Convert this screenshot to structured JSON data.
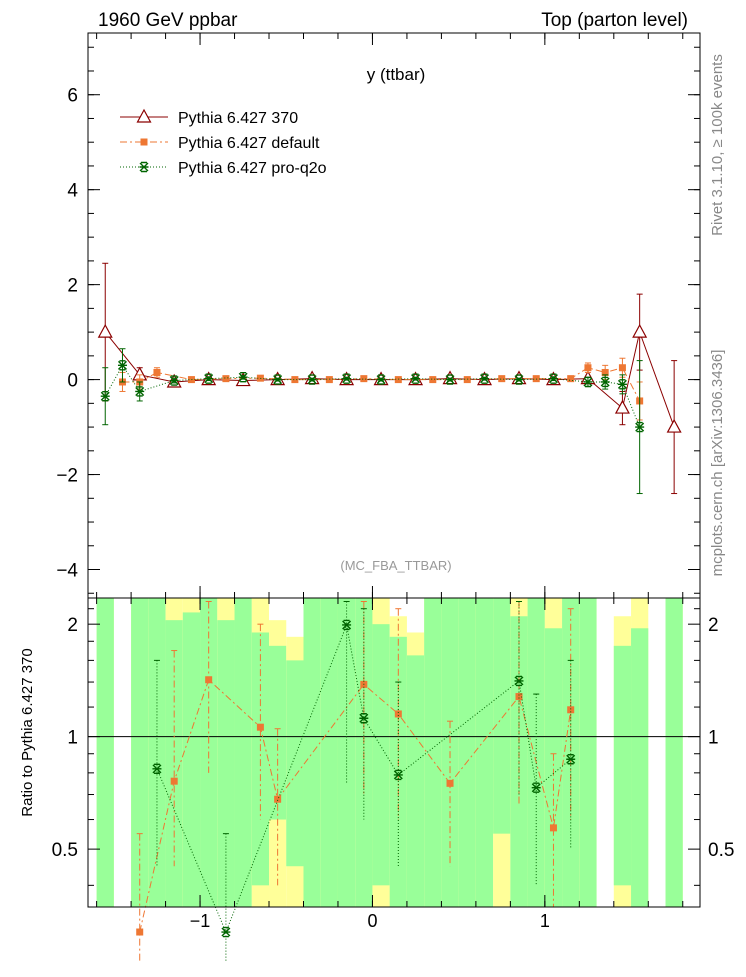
{
  "header": {
    "left": "1960 GeV ppbar",
    "right": "Top (parton level)"
  },
  "side_text": {
    "rivet": "Rivet 3.1.10, ≥ 100k events",
    "mcplots": "mcplots.cern.ch [arXiv:1306.3436]"
  },
  "colors": {
    "pythia_370": "#8b0000",
    "pythia_default": "#ee7733",
    "pythia_pro_q2o": "#006400",
    "band_green": "#99ff99",
    "band_yellow": "#ffff99"
  },
  "chart_data": [
    {
      "type": "line",
      "title": "y (ttbar)",
      "watermark": "(MC_FBA_TTBAR)",
      "xlabel": "",
      "ylabel": "",
      "xlim": [
        -1.65,
        1.9
      ],
      "ylim": [
        -4.6,
        7.3
      ],
      "x_ticks": [
        -1,
        0,
        1
      ],
      "x_tick_labels": [
        "−1",
        "0",
        "1"
      ],
      "y_ticks": [
        -4,
        -2,
        0,
        2,
        4,
        6
      ],
      "y_tick_labels": [
        "−4",
        "−2",
        "0",
        "2",
        "4",
        "6"
      ],
      "legend_position": "top-left",
      "series": [
        {
          "name": "Pythia 6.427 370",
          "marker": "open-triangle",
          "line": "solid",
          "points": [
            {
              "x": -1.55,
              "y": 1.0,
              "err": 1.45
            },
            {
              "x": -1.35,
              "y": 0.1,
              "err": 0.15
            },
            {
              "x": -1.15,
              "y": -0.05,
              "err": 0.05
            },
            {
              "x": -0.95,
              "y": 0.0,
              "err": 0.03
            },
            {
              "x": -0.75,
              "y": -0.02,
              "err": 0.03
            },
            {
              "x": -0.55,
              "y": 0.0,
              "err": 0.03
            },
            {
              "x": -0.35,
              "y": 0.02,
              "err": 0.03
            },
            {
              "x": -0.15,
              "y": 0.0,
              "err": 0.03
            },
            {
              "x": 0.05,
              "y": 0.0,
              "err": 0.03
            },
            {
              "x": 0.25,
              "y": 0.0,
              "err": 0.03
            },
            {
              "x": 0.45,
              "y": 0.02,
              "err": 0.03
            },
            {
              "x": 0.65,
              "y": 0.0,
              "err": 0.03
            },
            {
              "x": 0.85,
              "y": 0.02,
              "err": 0.03
            },
            {
              "x": 1.05,
              "y": 0.0,
              "err": 0.03
            },
            {
              "x": 1.25,
              "y": 0.02,
              "err": 0.05
            },
            {
              "x": 1.45,
              "y": -0.6,
              "err": 0.35
            },
            {
              "x": 1.55,
              "y": 1.0,
              "err": 0.8
            },
            {
              "x": 1.75,
              "y": -1.0,
              "err": 1.4
            }
          ]
        },
        {
          "name": "Pythia 6.427 default",
          "marker": "filled-square",
          "line": "dashdot",
          "points": [
            {
              "x": -1.45,
              "y": -0.05,
              "err": 0.2
            },
            {
              "x": -1.35,
              "y": -0.05,
              "err": 0.15
            },
            {
              "x": -1.25,
              "y": 0.15,
              "err": 0.1
            },
            {
              "x": -1.05,
              "y": 0.0,
              "err": 0.05
            },
            {
              "x": -0.85,
              "y": 0.02,
              "err": 0.04
            },
            {
              "x": -0.65,
              "y": 0.03,
              "err": 0.04
            },
            {
              "x": -0.45,
              "y": 0.0,
              "err": 0.04
            },
            {
              "x": -0.25,
              "y": 0.0,
              "err": 0.03
            },
            {
              "x": -0.05,
              "y": 0.02,
              "err": 0.03
            },
            {
              "x": 0.15,
              "y": 0.0,
              "err": 0.03
            },
            {
              "x": 0.35,
              "y": 0.0,
              "err": 0.03
            },
            {
              "x": 0.55,
              "y": 0.0,
              "err": 0.03
            },
            {
              "x": 0.75,
              "y": 0.02,
              "err": 0.03
            },
            {
              "x": 0.95,
              "y": 0.02,
              "err": 0.03
            },
            {
              "x": 1.15,
              "y": 0.02,
              "err": 0.04
            },
            {
              "x": 1.25,
              "y": 0.25,
              "err": 0.1
            },
            {
              "x": 1.35,
              "y": 0.15,
              "err": 0.15
            },
            {
              "x": 1.45,
              "y": 0.25,
              "err": 0.2
            },
            {
              "x": 1.55,
              "y": -0.45,
              "err": 0.4
            }
          ]
        },
        {
          "name": "Pythia 6.427 pro-q2o",
          "marker": "star",
          "line": "dotted",
          "points": [
            {
              "x": -1.55,
              "y": -0.35,
              "err": 0.6
            },
            {
              "x": -1.45,
              "y": 0.3,
              "err": 0.35
            },
            {
              "x": -1.35,
              "y": -0.25,
              "err": 0.2
            },
            {
              "x": -1.15,
              "y": -0.02,
              "err": 0.05
            },
            {
              "x": -0.95,
              "y": 0.02,
              "err": 0.04
            },
            {
              "x": -0.75,
              "y": 0.05,
              "err": 0.04
            },
            {
              "x": -0.55,
              "y": 0.0,
              "err": 0.03
            },
            {
              "x": -0.35,
              "y": 0.0,
              "err": 0.03
            },
            {
              "x": -0.15,
              "y": 0.02,
              "err": 0.03
            },
            {
              "x": 0.05,
              "y": 0.0,
              "err": 0.03
            },
            {
              "x": 0.25,
              "y": 0.02,
              "err": 0.03
            },
            {
              "x": 0.45,
              "y": 0.0,
              "err": 0.03
            },
            {
              "x": 0.65,
              "y": 0.02,
              "err": 0.03
            },
            {
              "x": 0.85,
              "y": 0.0,
              "err": 0.03
            },
            {
              "x": 1.05,
              "y": 0.02,
              "err": 0.04
            },
            {
              "x": 1.25,
              "y": -0.05,
              "err": 0.1
            },
            {
              "x": 1.35,
              "y": -0.05,
              "err": 0.15
            },
            {
              "x": 1.45,
              "y": -0.1,
              "err": 0.2
            },
            {
              "x": 1.55,
              "y": -1.0,
              "err": 1.4
            }
          ]
        }
      ]
    },
    {
      "type": "line",
      "title": "",
      "xlabel": "",
      "ylabel": "Ratio to Pythia 6.427 370",
      "xlim": [
        -1.65,
        1.9
      ],
      "ylim": [
        0.35,
        2.35
      ],
      "y_scale": "log",
      "x_ticks": [
        -1,
        0,
        1
      ],
      "x_tick_labels": [
        "−1",
        "0",
        "1"
      ],
      "y_ticks": [
        0.5,
        1,
        2
      ],
      "y_tick_labels": [
        "0.5",
        "1",
        "2"
      ],
      "reference_line": 1,
      "bands": [
        {
          "x0": -1.6,
          "x1": -1.5,
          "green": [
            0.35,
            2.35
          ],
          "yellow": [
            0.35,
            2.35
          ]
        },
        {
          "x0": -1.4,
          "x1": -1.3,
          "green": [
            0.35,
            2.35
          ],
          "yellow": [
            0.35,
            2.35
          ]
        },
        {
          "x0": -1.3,
          "x1": -1.2,
          "green": [
            0.35,
            2.35
          ],
          "yellow": [
            0.35,
            2.35
          ]
        },
        {
          "x0": -1.2,
          "x1": -1.1,
          "green": [
            0.35,
            2.05
          ],
          "yellow": [
            0.35,
            2.35
          ]
        },
        {
          "x0": -1.1,
          "x1": -1.0,
          "green": [
            0.35,
            2.15
          ],
          "yellow": [
            0.35,
            2.35
          ]
        },
        {
          "x0": -1.0,
          "x1": -0.9,
          "green": [
            0.35,
            2.35
          ],
          "yellow": [
            0.35,
            2.35
          ]
        },
        {
          "x0": -0.9,
          "x1": -0.8,
          "green": [
            0.35,
            2.05
          ],
          "yellow": [
            0.35,
            2.35
          ]
        },
        {
          "x0": -0.8,
          "x1": -0.7,
          "green": [
            0.35,
            2.35
          ],
          "yellow": [
            0.35,
            2.35
          ]
        },
        {
          "x0": -0.7,
          "x1": -0.6,
          "green": [
            0.4,
            1.9
          ],
          "yellow": [
            0.35,
            2.35
          ]
        },
        {
          "x0": -0.6,
          "x1": -0.5,
          "green": [
            0.6,
            1.75
          ],
          "yellow": [
            0.35,
            2.05
          ]
        },
        {
          "x0": -0.5,
          "x1": -0.4,
          "green": [
            0.45,
            1.6
          ],
          "yellow": [
            0.35,
            1.85
          ]
        },
        {
          "x0": -0.4,
          "x1": -0.3,
          "green": [
            0.35,
            2.35
          ],
          "yellow": [
            0.35,
            2.35
          ]
        },
        {
          "x0": -0.3,
          "x1": -0.2,
          "green": [
            0.35,
            2.35
          ],
          "yellow": [
            0.35,
            2.35
          ]
        },
        {
          "x0": -0.2,
          "x1": -0.1,
          "green": [
            0.35,
            2.35
          ],
          "yellow": [
            0.35,
            2.35
          ]
        },
        {
          "x0": -0.1,
          "x1": 0.0,
          "green": [
            0.35,
            2.35
          ],
          "yellow": [
            0.35,
            2.35
          ]
        },
        {
          "x0": 0.0,
          "x1": 0.1,
          "green": [
            0.4,
            2.0
          ],
          "yellow": [
            0.35,
            2.35
          ]
        },
        {
          "x0": 0.1,
          "x1": 0.2,
          "green": [
            0.35,
            1.85
          ],
          "yellow": [
            0.35,
            2.1
          ]
        },
        {
          "x0": 0.2,
          "x1": 0.3,
          "green": [
            0.35,
            1.65
          ],
          "yellow": [
            0.35,
            1.9
          ]
        },
        {
          "x0": 0.3,
          "x1": 0.4,
          "green": [
            0.35,
            2.35
          ],
          "yellow": [
            0.35,
            2.35
          ]
        },
        {
          "x0": 0.4,
          "x1": 0.5,
          "green": [
            0.35,
            2.35
          ],
          "yellow": [
            0.35,
            2.35
          ]
        },
        {
          "x0": 0.5,
          "x1": 0.6,
          "green": [
            0.35,
            2.35
          ],
          "yellow": [
            0.35,
            2.35
          ]
        },
        {
          "x0": 0.6,
          "x1": 0.7,
          "green": [
            0.35,
            2.35
          ],
          "yellow": [
            0.35,
            2.35
          ]
        },
        {
          "x0": 0.7,
          "x1": 0.8,
          "green": [
            0.55,
            2.35
          ],
          "yellow": [
            0.35,
            2.35
          ]
        },
        {
          "x0": 0.8,
          "x1": 0.9,
          "green": [
            0.35,
            2.1
          ],
          "yellow": [
            0.35,
            2.35
          ]
        },
        {
          "x0": 0.9,
          "x1": 1.0,
          "green": [
            0.35,
            2.35
          ],
          "yellow": [
            0.35,
            2.35
          ]
        },
        {
          "x0": 1.0,
          "x1": 1.1,
          "green": [
            0.35,
            1.95
          ],
          "yellow": [
            0.35,
            2.35
          ]
        },
        {
          "x0": 1.1,
          "x1": 1.2,
          "green": [
            0.35,
            2.35
          ],
          "yellow": [
            0.35,
            2.35
          ]
        },
        {
          "x0": 1.2,
          "x1": 1.3,
          "green": [
            0.35,
            2.35
          ],
          "yellow": [
            0.35,
            2.35
          ]
        },
        {
          "x0": 1.4,
          "x1": 1.5,
          "green": [
            0.4,
            1.75
          ],
          "yellow": [
            0.35,
            2.1
          ]
        },
        {
          "x0": 1.5,
          "x1": 1.6,
          "green": [
            0.35,
            1.95
          ],
          "yellow": [
            0.35,
            2.35
          ]
        },
        {
          "x0": 1.7,
          "x1": 1.8,
          "green": [
            0.35,
            2.35
          ],
          "yellow": [
            0.35,
            2.35
          ]
        }
      ],
      "series": [
        {
          "name": "Pythia 6.427 default",
          "marker": "filled-square",
          "line": "dashdot",
          "points": [
            {
              "x": -1.35,
              "y": 0.3,
              "lo": 0.25,
              "hi": 0.55
            },
            {
              "x": -1.15,
              "y": 0.76,
              "lo": 0.45,
              "hi": 1.7
            },
            {
              "x": -0.95,
              "y": 1.42,
              "lo": 0.8,
              "hi": 2.3
            },
            {
              "x": -0.65,
              "y": 1.06,
              "lo": 0.6,
              "hi": 2.0
            },
            {
              "x": -0.55,
              "y": 0.68,
              "lo": 0.4,
              "hi": 1.05
            },
            {
              "x": -0.05,
              "y": 1.38,
              "lo": 0.7,
              "hi": 2.3
            },
            {
              "x": 0.15,
              "y": 1.15,
              "lo": 0.6,
              "hi": 2.2
            },
            {
              "x": 0.45,
              "y": 0.75,
              "lo": 0.45,
              "hi": 1.1
            },
            {
              "x": 0.85,
              "y": 1.28,
              "lo": 0.65,
              "hi": 2.3
            },
            {
              "x": 1.05,
              "y": 0.57,
              "lo": 0.35,
              "hi": 0.9
            },
            {
              "x": 1.15,
              "y": 1.18,
              "lo": 0.6,
              "hi": 2.2
            }
          ]
        },
        {
          "name": "Pythia 6.427 pro-q2o",
          "marker": "star",
          "line": "dotted",
          "points": [
            {
              "x": -1.25,
              "y": 0.82,
              "lo": 0.45,
              "hi": 1.6
            },
            {
              "x": -0.85,
              "y": 0.3,
              "lo": 0.25,
              "hi": 0.55
            },
            {
              "x": -0.15,
              "y": 1.99,
              "lo": 0.75,
              "hi": 2.3
            },
            {
              "x": -0.05,
              "y": 1.12,
              "lo": 0.6,
              "hi": 2.2
            },
            {
              "x": 0.15,
              "y": 0.79,
              "lo": 0.45,
              "hi": 1.4
            },
            {
              "x": 0.85,
              "y": 1.41,
              "lo": 0.7,
              "hi": 2.3
            },
            {
              "x": 0.95,
              "y": 0.73,
              "lo": 0.4,
              "hi": 1.3
            },
            {
              "x": 1.15,
              "y": 0.87,
              "lo": 0.5,
              "hi": 1.6
            }
          ]
        }
      ]
    }
  ]
}
